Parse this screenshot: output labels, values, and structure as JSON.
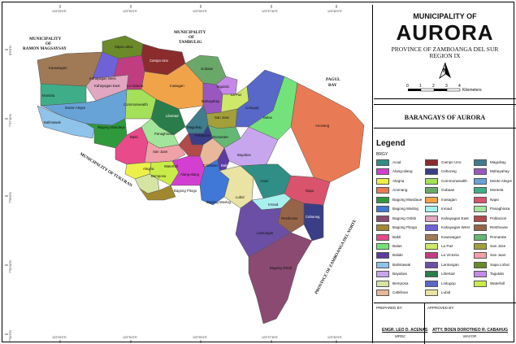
{
  "header": {
    "municipality_of": "MUNICIPALITY OF",
    "name": "AURORA",
    "province": "PROVINCE OF ZAMBOANGA DEL SUR",
    "region": "REGION IX"
  },
  "scale": {
    "ticks": [
      "0",
      "1",
      "2",
      "3",
      "4"
    ],
    "unit": "Kilometers"
  },
  "north_label": "N",
  "subtitle": "BARANGAYS OF AURORA",
  "legend": {
    "title": "Legend",
    "category": "BRGY",
    "items": [
      {
        "name": "Acad",
        "color": "#2f8f86"
      },
      {
        "name": "Alang-alang",
        "color": "#d33fd1"
      },
      {
        "name": "Alegria",
        "color": "#eef04a"
      },
      {
        "name": "Anonang",
        "color": "#e87a55"
      },
      {
        "name": "Bagong Mandaue",
        "color": "#2f9a3c"
      },
      {
        "name": "Bagong Maslog",
        "color": "#3f78d6"
      },
      {
        "name": "Bagong Oslob",
        "color": "#8a4a72"
      },
      {
        "name": "Bagong Pitogo",
        "color": "#a1882f"
      },
      {
        "name": "Bakti",
        "color": "#e84a8a"
      },
      {
        "name": "Balas",
        "color": "#74e27a"
      },
      {
        "name": "Balide",
        "color": "#5e3aa3"
      },
      {
        "name": "Balintawak",
        "color": "#8fc3ea"
      },
      {
        "name": "Bayabas",
        "color": "#c7a6ee"
      },
      {
        "name": "Bemposa",
        "color": "#d5e4a2"
      },
      {
        "name": "Cabilinan",
        "color": "#e8b89a"
      },
      {
        "name": "Campo Uno",
        "color": "#8a2c2c"
      },
      {
        "name": "Cebuneg",
        "color": "#3a3e86"
      },
      {
        "name": "Commonwealth",
        "color": "#a4e05a"
      },
      {
        "name": "Gubaan",
        "color": "#6aa86a"
      },
      {
        "name": "Inasagan",
        "color": "#f1a34a"
      },
      {
        "name": "Inroad",
        "color": "#a8f0ee"
      },
      {
        "name": "Kahayagan East",
        "color": "#e1a6c0"
      },
      {
        "name": "Kahayagan West",
        "color": "#6f62d8"
      },
      {
        "name": "Kauswagan",
        "color": "#a07a56"
      },
      {
        "name": "La Paz",
        "color": "#cee869"
      },
      {
        "name": "La Victoria",
        "color": "#c13d82"
      },
      {
        "name": "Lantungan",
        "color": "#6a4fa4"
      },
      {
        "name": "Libertad",
        "color": "#2a7d4a"
      },
      {
        "name": "Lintugop",
        "color": "#5868c8"
      },
      {
        "name": "Lubid",
        "color": "#e9e3a4"
      },
      {
        "name": "Maguikay",
        "color": "#3f7c8e"
      },
      {
        "name": "Mahayahay",
        "color": "#9a57c0"
      },
      {
        "name": "Monte Alegre",
        "color": "#68a3d8"
      },
      {
        "name": "Montela",
        "color": "#3fae88"
      },
      {
        "name": "Napo",
        "color": "#d9536c"
      },
      {
        "name": "Panaghiusa",
        "color": "#a2e59a"
      },
      {
        "name": "Poblacion",
        "color": "#b24a4a"
      },
      {
        "name": "Resthouse",
        "color": "#966448"
      },
      {
        "name": "Romarate",
        "color": "#64b873"
      },
      {
        "name": "San Jose",
        "color": "#a3a03a"
      },
      {
        "name": "San Juan",
        "color": "#f0a1a8"
      },
      {
        "name": "Sapa Loboc",
        "color": "#6b8a2a"
      },
      {
        "name": "Tagulalo",
        "color": "#c58ae8"
      },
      {
        "name": "Waterfall",
        "color": "#c9ec4a"
      }
    ]
  },
  "signatures": {
    "prepared_label": "PREPARED BY:",
    "prepared_name": "ENGR. LEO D. ACENAS",
    "prepared_position": "MPDC",
    "approved_label": "APPROVED BY:",
    "approved_name": "ATTY. BOEN DOROTHEO R. CABAHUG",
    "approved_position": "MAYOR"
  },
  "map": {
    "neighbors": {
      "ramon_1": "MUNICIPALITY",
      "ramon_2": "OF",
      "ramon_3": "RAMON MAGSAYSAY",
      "tambulig_1": "MUNICIPALITY",
      "tambulig_2": "OF",
      "tambulig_3": "TAMBULIG",
      "pagul_1": "PAGUL",
      "pagul_2": "BAY",
      "tukuran": "MUNICIPALITY OF TUKURAN",
      "zds": "PROVINCE OF ZAMBOANGA DEL NORTE"
    },
    "coords_top": [
      "123°25'0\"E",
      "123°30'0\"E",
      "123°35'0\"E",
      "123°37'30\"E",
      "123°40'0\"E"
    ],
    "coords_bottom": [
      "123°25'0\"E",
      "123°30'0\"E",
      "123°35'0\"E",
      "123°37'30\"E",
      "123°40'0\"E"
    ],
    "coords_left": [
      "8°0'0\"N",
      "7°57'30\"N",
      "7°55'0\"N",
      "7°52'30\"N",
      "7°50'0\"N"
    ]
  }
}
